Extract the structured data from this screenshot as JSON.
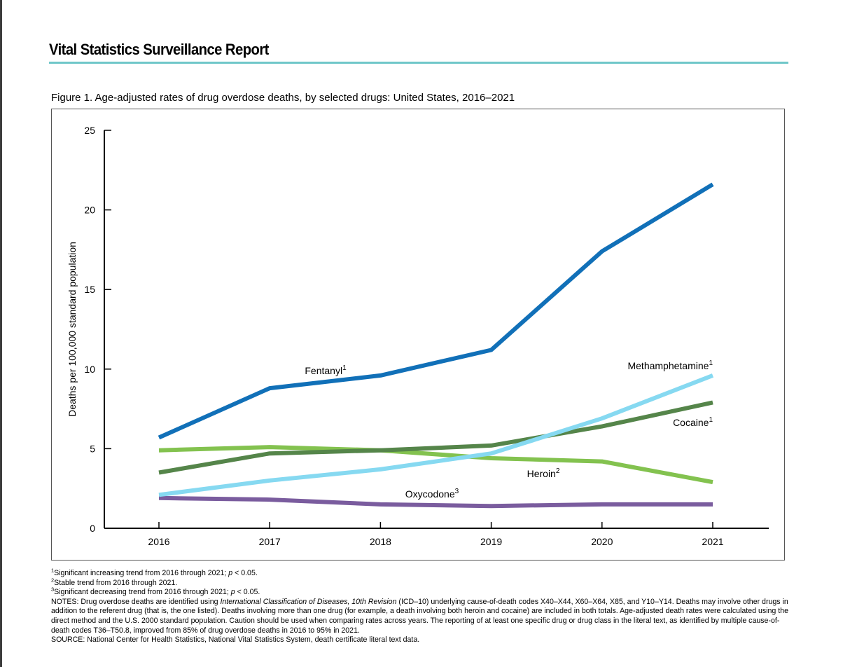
{
  "header": {
    "report_title": "Vital Statistics Surveillance Report",
    "accent_color": "#6fc7c9"
  },
  "figure": {
    "caption": "Figure 1. Age-adjusted rates of drug overdose deaths, by selected drugs: United States, 2016–2021"
  },
  "chart_data": {
    "type": "line",
    "title": "",
    "xlabel": "",
    "ylabel": "Deaths per 100,000 standard population",
    "x": [
      "2016",
      "2017",
      "2018",
      "2019",
      "2020",
      "2021"
    ],
    "ylim": [
      0,
      25
    ],
    "yticks": [
      "0",
      "5",
      "10",
      "15",
      "20",
      "25"
    ],
    "grid": false,
    "legend": "inline labels",
    "series": [
      {
        "name": "Fentanyl",
        "sup": "1",
        "color": "#1170b8",
        "values": [
          5.7,
          8.8,
          9.6,
          11.2,
          17.4,
          21.6
        ]
      },
      {
        "name": "Methamphetamine",
        "sup": "1",
        "color": "#86d9f1",
        "values": [
          2.1,
          3.0,
          3.7,
          4.7,
          6.9,
          9.6
        ]
      },
      {
        "name": "Cocaine",
        "sup": "1",
        "color": "#55854a",
        "values": [
          3.5,
          4.7,
          4.9,
          5.2,
          6.4,
          7.9
        ]
      },
      {
        "name": "Heroin",
        "sup": "2",
        "color": "#83c24f",
        "values": [
          4.9,
          5.1,
          4.9,
          4.4,
          4.2,
          2.9
        ]
      },
      {
        "name": "Oxycodone",
        "sup": "3",
        "color": "#7a5c9e",
        "values": [
          1.9,
          1.8,
          1.5,
          1.4,
          1.5,
          1.5
        ]
      }
    ]
  },
  "footnotes": {
    "n1_sup": "1",
    "n1_text": "Significant increasing trend from 2016 through 2021; ",
    "n1_p": "p",
    "n1_tail": " < 0.05.",
    "n2_sup": "2",
    "n2_text": "Stable trend from 2016 through 2021.",
    "n3_sup": "3",
    "n3_text": "Significant decreasing trend from 2016 through 2021; ",
    "n3_p": "p",
    "n3_tail": " < 0.05.",
    "notes_lead": "NOTES: Drug overdose deaths are identified using ",
    "notes_italic": "International Classification of Diseases, 10th Revision",
    "notes_rest": " (ICD–10) underlying cause-of-death codes X40–X44, X60–X64, X85, and Y10–Y14. Deaths may involve other drugs in addition to the referent drug (that is, the one listed). Deaths involving more than one drug (for example, a death involving both heroin and cocaine) are included in both totals. Age-adjusted death rates were calculated using the direct method and the U.S. 2000 standard population. Caution should be used when comparing rates across years. The reporting of at least one specific drug or drug class in the literal text, as identified by multiple cause-of-death codes T36–T50.8, improved from 85% of drug overdose deaths in 2016 to 95% in 2021.",
    "source": "SOURCE: National Center for Health Statistics, National Vital Statistics System, death certificate literal text data."
  }
}
